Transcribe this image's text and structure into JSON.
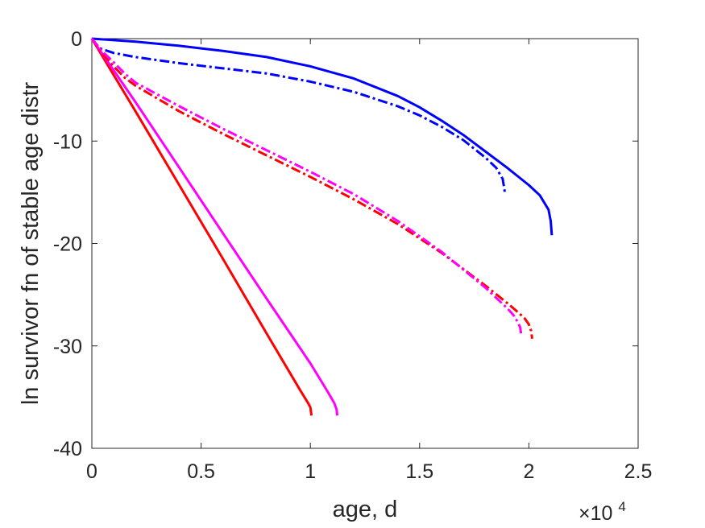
{
  "chart_data": {
    "type": "line",
    "title": "",
    "xlabel": "age, d",
    "ylabel": "ln survivor fn of stable age distr",
    "x_exponent_label": "×10",
    "x_exponent_power": "4",
    "xlim": [
      0,
      25000
    ],
    "ylim": [
      -40,
      0
    ],
    "x_ticks": [
      0,
      5000,
      10000,
      15000,
      20000,
      25000
    ],
    "x_tick_labels": [
      "0",
      "0.5",
      "1",
      "1.5",
      "2",
      "2.5"
    ],
    "y_ticks": [
      0,
      -10,
      -20,
      -30,
      -40
    ],
    "y_tick_labels": [
      "0",
      "-10",
      "-20",
      "-30",
      "-40"
    ],
    "grid": false,
    "legend": "none",
    "series": [
      {
        "color": "#0000ff",
        "style": "solid",
        "x": [
          0,
          2000,
          4000,
          6000,
          8000,
          10000,
          12000,
          14000,
          15000,
          16000,
          17000,
          18000,
          19000,
          20000,
          20500,
          20900,
          21000,
          21050
        ],
        "y": [
          0,
          -0.3,
          -0.7,
          -1.2,
          -1.8,
          -2.7,
          -3.9,
          -5.6,
          -6.7,
          -8.0,
          -9.4,
          -11.0,
          -12.6,
          -14.3,
          -15.3,
          -16.7,
          -17.8,
          -19.2
        ]
      },
      {
        "color": "#0000ff",
        "style": "dashdot",
        "x": [
          0,
          300,
          1000,
          2000,
          4000,
          6000,
          8000,
          10000,
          12000,
          14000,
          15000,
          16000,
          17000,
          18000,
          18500,
          18800,
          18900
        ],
        "y": [
          0,
          -0.9,
          -1.4,
          -1.8,
          -2.4,
          -2.9,
          -3.4,
          -4.2,
          -5.2,
          -6.6,
          -7.5,
          -8.6,
          -9.9,
          -11.6,
          -12.6,
          -13.7,
          -15.0
        ]
      },
      {
        "color": "#ff0000",
        "style": "solid",
        "x": [
          0,
          2000,
          4000,
          6000,
          8000,
          9500,
          9900,
          10000,
          10050
        ],
        "y": [
          0,
          -7.1,
          -14.3,
          -21.5,
          -28.8,
          -34.2,
          -35.6,
          -36.0,
          -36.8
        ]
      },
      {
        "color": "#ff00ff",
        "style": "solid",
        "x": [
          0,
          2000,
          4000,
          6000,
          8000,
          10000,
          10800,
          11100,
          11200,
          11230
        ],
        "y": [
          0,
          -6.2,
          -12.6,
          -19.0,
          -25.4,
          -31.7,
          -34.5,
          -35.6,
          -36.2,
          -36.8
        ]
      },
      {
        "color": "#ff0000",
        "style": "dashdot",
        "x": [
          0,
          500,
          1000,
          1500,
          2000,
          4000,
          6000,
          8000,
          10000,
          12000,
          14000,
          16000,
          18000,
          19000,
          19500,
          19800,
          20000,
          20100,
          20150
        ],
        "y": [
          0,
          -1.5,
          -2.7,
          -3.8,
          -4.6,
          -7.1,
          -9.3,
          -11.4,
          -13.5,
          -15.7,
          -18.1,
          -20.9,
          -24.1,
          -25.8,
          -26.7,
          -27.3,
          -27.9,
          -28.5,
          -29.3
        ]
      },
      {
        "color": "#ff00ff",
        "style": "dashdot",
        "x": [
          0,
          500,
          1000,
          1500,
          2000,
          4000,
          6000,
          8000,
          10000,
          12000,
          14000,
          16000,
          18000,
          19000,
          19300,
          19500,
          19600,
          19650
        ],
        "y": [
          0,
          -1.3,
          -2.3,
          -3.4,
          -4.3,
          -6.6,
          -8.8,
          -10.9,
          -13.0,
          -15.2,
          -17.8,
          -20.8,
          -24.3,
          -26.3,
          -27.0,
          -27.7,
          -28.2,
          -28.9
        ]
      }
    ]
  }
}
